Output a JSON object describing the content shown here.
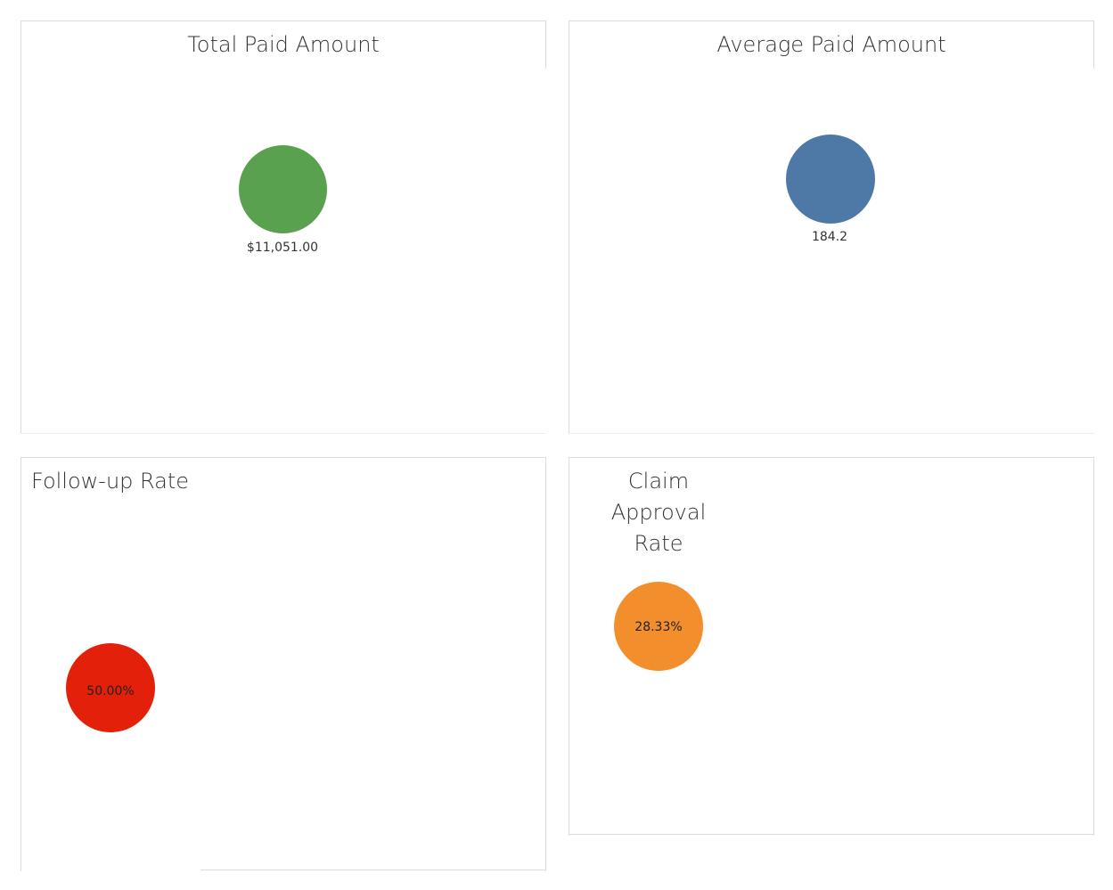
{
  "chart_data": [
    {
      "type": "scatter",
      "title": "Total Paid Amount",
      "values": [
        11051.0
      ],
      "data_labels": [
        "$11,051.00"
      ],
      "color": "#59a14f"
    },
    {
      "type": "scatter",
      "title": "Average Paid Amount",
      "values": [
        184.2
      ],
      "data_labels": [
        "184.2"
      ],
      "color": "#4e79a7"
    },
    {
      "type": "scatter",
      "title": "Follow-up Rate",
      "values": [
        50.0
      ],
      "data_labels": [
        "50.00%"
      ],
      "color": "#e3210b"
    },
    {
      "type": "scatter",
      "title": "Claim Approval\nRate",
      "values": [
        28.33
      ],
      "data_labels": [
        "28.33%"
      ],
      "color": "#f28e2b"
    }
  ]
}
